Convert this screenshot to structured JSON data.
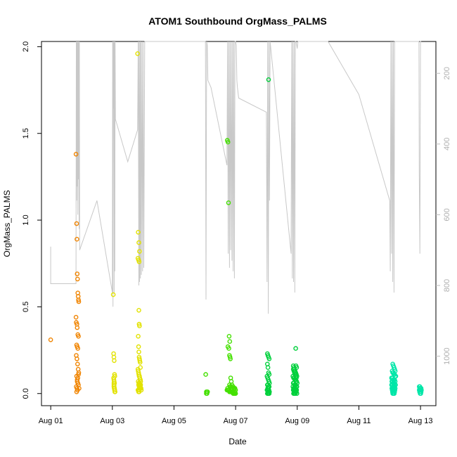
{
  "chart_data": {
    "type": "scatter",
    "title": "ATOM1 Southbound OrgMass_PALMS",
    "xlabel": "Date",
    "ylabel": "OrgMass_PALMS",
    "x_ticks": [
      "Aug 01",
      "Aug 03",
      "Aug 05",
      "Aug 07",
      "Aug 09",
      "Aug 11",
      "Aug 13"
    ],
    "x_tick_days": [
      1,
      3,
      5,
      7,
      9,
      11,
      13
    ],
    "xlim_days": [
      0.7,
      13.5
    ],
    "ylim": [
      -0.07,
      2.03
    ],
    "y_ticks": [
      0.0,
      0.5,
      1.0,
      1.5,
      2.0
    ],
    "y_tick_labels": [
      "0.0",
      "0.5",
      "1.0",
      "1.5",
      "2.0"
    ],
    "secondary_axis": {
      "ticks": [
        200,
        400,
        600,
        800,
        1000
      ],
      "tick_labels": [
        "200",
        "400",
        "600",
        "800",
        "1000"
      ],
      "lim": [
        1140,
        110
      ],
      "color": "#bdbdbd"
    },
    "grid": false,
    "series": [
      {
        "color": "#f08400",
        "x_days": [
          1.0,
          1.82,
          1.84,
          1.85,
          1.86,
          1.87,
          1.88,
          1.89,
          1.9,
          1.91,
          1.82,
          1.83,
          1.85,
          1.86,
          1.88,
          1.9,
          1.84,
          1.86,
          1.88,
          1.83,
          1.85,
          1.87,
          1.89,
          1.91,
          1.84,
          1.86,
          1.88,
          1.9,
          1.83,
          1.85,
          1.87,
          1.84,
          1.86,
          1.88,
          1.9,
          1.92
        ],
        "y": [
          0.31,
          1.38,
          0.98,
          0.89,
          0.69,
          0.66,
          0.58,
          0.56,
          0.54,
          0.53,
          0.44,
          0.41,
          0.4,
          0.38,
          0.34,
          0.33,
          0.28,
          0.27,
          0.26,
          0.22,
          0.2,
          0.17,
          0.14,
          0.12,
          0.1,
          0.08,
          0.06,
          0.05,
          0.04,
          0.03,
          0.02,
          0.01,
          0.07,
          0.09,
          0.11,
          0.03
        ]
      },
      {
        "color": "#e2e200",
        "x_days": [
          3.03,
          3.04,
          3.05,
          3.06,
          3.07,
          3.08,
          3.04,
          3.05,
          3.06,
          3.07,
          3.05,
          3.06,
          3.07,
          3.08,
          3.09,
          3.05,
          3.06,
          3.05,
          3.06,
          3.07,
          3.08,
          3.82,
          3.84,
          3.86,
          3.88,
          3.83,
          3.85,
          3.87,
          3.86,
          3.87,
          3.88,
          3.84,
          3.85,
          3.86,
          3.87,
          3.88,
          3.89,
          3.9,
          3.91,
          3.83,
          3.84,
          3.85,
          3.86,
          3.87,
          3.88,
          3.89,
          3.9,
          3.91,
          3.92,
          3.84,
          3.86,
          3.88,
          3.9,
          3.92,
          3.85,
          3.87,
          3.89,
          3.91,
          3.93,
          3.94,
          3.83,
          3.85,
          3.87,
          3.89,
          3.91,
          3.93,
          3.85,
          3.87,
          3.89,
          3.86,
          3.88,
          3.9,
          3.87,
          3.89
        ],
        "y": [
          0.57,
          0.23,
          0.21,
          0.19,
          0.11,
          0.1,
          0.09,
          0.08,
          0.07,
          0.06,
          0.05,
          0.04,
          0.03,
          0.02,
          0.01,
          0.06,
          0.05,
          0.04,
          0.03,
          0.02,
          0.01,
          1.96,
          0.93,
          0.87,
          0.82,
          0.78,
          0.77,
          0.76,
          0.48,
          0.4,
          0.39,
          0.33,
          0.27,
          0.24,
          0.21,
          0.2,
          0.19,
          0.18,
          0.15,
          0.14,
          0.13,
          0.12,
          0.11,
          0.1,
          0.1,
          0.09,
          0.08,
          0.08,
          0.07,
          0.07,
          0.06,
          0.06,
          0.05,
          0.05,
          0.05,
          0.04,
          0.04,
          0.03,
          0.03,
          0.02,
          0.02,
          0.01,
          0.01,
          0.05,
          0.04,
          0.03,
          0.02,
          0.04,
          0.03,
          0.06,
          0.05,
          0.04,
          0.02,
          0.03
        ]
      },
      {
        "color": "#44e000",
        "x_days": [
          6.03,
          6.05,
          6.07,
          6.09,
          6.05,
          6.07,
          6.73,
          6.75,
          6.77,
          6.79,
          6.81,
          6.75,
          6.78,
          6.8,
          6.82,
          6.83,
          6.84,
          6.86,
          6.88,
          6.9,
          6.92,
          6.94,
          6.96,
          6.98,
          7.0,
          6.72,
          6.74,
          6.76,
          6.78,
          6.8,
          6.82,
          6.84,
          6.86,
          6.88,
          6.9,
          6.92,
          6.94,
          6.96,
          6.98,
          7.0,
          6.74,
          6.78,
          6.82,
          6.86,
          6.9,
          6.94,
          6.98,
          6.8,
          6.84,
          6.88
        ],
        "y": [
          0.11,
          0.01,
          0.01,
          0.01,
          0.0,
          0.0,
          1.46,
          1.45,
          1.1,
          0.33,
          0.3,
          0.27,
          0.26,
          0.22,
          0.21,
          0.2,
          0.09,
          0.07,
          0.05,
          0.04,
          0.04,
          0.03,
          0.03,
          0.03,
          0.02,
          0.02,
          0.02,
          0.02,
          0.02,
          0.01,
          0.01,
          0.01,
          0.01,
          0.01,
          0.01,
          0.0,
          0.0,
          0.0,
          0.0,
          0.0,
          0.03,
          0.02,
          0.04,
          0.03,
          0.02,
          0.01,
          0.01,
          0.05,
          0.04,
          0.03
        ]
      },
      {
        "color": "#00d03c",
        "x_days": [
          8.07,
          8.03,
          8.05,
          8.07,
          8.09,
          8.03,
          8.05,
          8.07,
          8.09,
          8.02,
          8.04,
          8.06,
          8.08,
          8.1,
          8.03,
          8.05,
          8.07,
          8.09,
          8.04,
          8.06,
          8.08,
          8.02,
          8.04,
          8.06,
          8.08,
          8.1,
          8.03,
          8.05,
          8.07,
          8.09,
          8.95,
          8.87,
          8.89,
          8.91,
          8.93,
          8.95,
          8.97,
          8.99,
          8.86,
          8.88,
          8.9,
          8.92,
          8.94,
          8.96,
          8.98,
          9.0,
          8.87,
          8.89,
          8.91,
          8.93,
          8.95,
          8.97,
          8.99,
          8.86,
          8.88,
          8.9,
          8.92,
          8.94,
          8.96,
          8.98,
          8.87,
          8.89,
          8.91,
          8.93,
          8.95,
          8.97,
          8.99,
          8.88,
          8.9,
          8.92,
          8.94,
          8.96,
          8.98,
          8.87,
          8.89,
          8.91,
          8.93,
          8.95,
          8.97
        ],
        "y": [
          1.81,
          0.23,
          0.22,
          0.21,
          0.2,
          0.17,
          0.15,
          0.12,
          0.11,
          0.1,
          0.09,
          0.08,
          0.07,
          0.06,
          0.05,
          0.05,
          0.04,
          0.04,
          0.03,
          0.03,
          0.02,
          0.02,
          0.02,
          0.01,
          0.01,
          0.01,
          0.0,
          0.0,
          0.0,
          0.0,
          0.26,
          0.16,
          0.15,
          0.14,
          0.13,
          0.12,
          0.11,
          0.1,
          0.1,
          0.09,
          0.09,
          0.08,
          0.08,
          0.07,
          0.07,
          0.06,
          0.06,
          0.06,
          0.05,
          0.05,
          0.05,
          0.04,
          0.04,
          0.04,
          0.03,
          0.03,
          0.03,
          0.03,
          0.02,
          0.02,
          0.02,
          0.02,
          0.01,
          0.01,
          0.01,
          0.01,
          0.0,
          0.0,
          0.0,
          0.0,
          0.0,
          0.16,
          0.15,
          0.14,
          0.13,
          0.12,
          0.11,
          0.1,
          0.09
        ]
      },
      {
        "color": "#00e6a8",
        "x_days": [
          12.1,
          12.12,
          12.14,
          12.16,
          12.18,
          12.08,
          12.1,
          12.12,
          12.14,
          12.16,
          12.18,
          12.2,
          12.06,
          12.08,
          12.1,
          12.12,
          12.14,
          12.16,
          12.18,
          12.07,
          12.09,
          12.11,
          12.13,
          12.15,
          12.17,
          12.19,
          12.06,
          12.08,
          12.1,
          12.12,
          12.14,
          12.16,
          12.18,
          12.07,
          12.09,
          12.11,
          12.13,
          12.15,
          12.17,
          12.08,
          12.1,
          12.12,
          12.14,
          12.16,
          12.09,
          12.11,
          12.13,
          12.15,
          12.1,
          12.12,
          12.96,
          12.98,
          13.0,
          13.02,
          12.97,
          12.99,
          13.01,
          13.03,
          12.96,
          12.98,
          13.0,
          13.02,
          12.97,
          12.99,
          13.01
        ],
        "y": [
          0.17,
          0.16,
          0.15,
          0.14,
          0.13,
          0.13,
          0.12,
          0.12,
          0.11,
          0.11,
          0.1,
          0.1,
          0.09,
          0.09,
          0.09,
          0.08,
          0.08,
          0.08,
          0.07,
          0.07,
          0.07,
          0.06,
          0.06,
          0.06,
          0.05,
          0.05,
          0.05,
          0.05,
          0.04,
          0.04,
          0.04,
          0.04,
          0.03,
          0.03,
          0.03,
          0.03,
          0.03,
          0.02,
          0.02,
          0.02,
          0.02,
          0.02,
          0.01,
          0.01,
          0.01,
          0.01,
          0.01,
          0.0,
          0.0,
          0.0,
          0.04,
          0.04,
          0.03,
          0.03,
          0.03,
          0.03,
          0.02,
          0.02,
          0.02,
          0.02,
          0.01,
          0.01,
          0.01,
          0.0,
          0.0
        ]
      }
    ],
    "altitude_trace": {
      "color": "#c8c8c8",
      "x_days": [
        1.0,
        1.0,
        1.32,
        1.62,
        1.82,
        1.83,
        1.84,
        1.85,
        1.86,
        1.87,
        1.88,
        1.89,
        1.9,
        1.91,
        1.92,
        1.93,
        1.94,
        2.5,
        3.0,
        3.01,
        3.02,
        3.03,
        3.04,
        3.05,
        3.06,
        3.07,
        3.08,
        3.09,
        3.1,
        3.5,
        3.82,
        3.84,
        3.86,
        3.87,
        3.88,
        3.9,
        3.91,
        3.92,
        3.94,
        3.96,
        3.98,
        4.0,
        4.02,
        4.05,
        6.0,
        6.02,
        6.04,
        6.06,
        6.08,
        6.1,
        6.2,
        6.72,
        6.74,
        6.76,
        6.78,
        6.8,
        6.82,
        6.84,
        6.86,
        6.88,
        6.9,
        6.92,
        6.94,
        6.96,
        6.98,
        7.0,
        7.02,
        7.04,
        7.06,
        7.1,
        8.0,
        8.02,
        8.04,
        8.06,
        8.08,
        8.1,
        8.12,
        8.8,
        8.82,
        8.84,
        8.86,
        8.88,
        8.9,
        8.92,
        8.94,
        8.96,
        8.98,
        9.0,
        9.02,
        10.0,
        11.0,
        12.0,
        12.02,
        12.04,
        12.06,
        12.08,
        12.1,
        12.12,
        12.14,
        12.16,
        12.18,
        12.2,
        12.22,
        12.95,
        12.96,
        12.98,
        13.0,
        13.02
      ],
      "altitude": [
        690,
        795,
        795,
        795,
        795,
        110,
        560,
        110,
        520,
        110,
        600,
        110,
        500,
        110,
        640,
        110,
        700,
        560,
        820,
        110,
        860,
        110,
        300,
        110,
        820,
        110,
        760,
        110,
        330,
        450,
        360,
        110,
        800,
        110,
        790,
        110,
        780,
        110,
        770,
        110,
        760,
        110,
        750,
        110,
        110,
        110,
        840,
        110,
        120,
        220,
        240,
        460,
        110,
        710,
        110,
        750,
        110,
        700,
        110,
        730,
        110,
        760,
        110,
        780,
        110,
        110,
        120,
        220,
        240,
        270,
        310,
        790,
        110,
        880,
        110,
        560,
        110,
        710,
        110,
        780,
        110,
        790,
        110,
        820,
        110,
        110,
        120,
        130,
        110,
        110,
        260,
        560,
        760,
        110,
        710,
        110,
        790,
        110,
        820,
        110,
        110,
        110,
        110,
        110,
        480,
        710,
        110,
        110
      ]
    }
  }
}
